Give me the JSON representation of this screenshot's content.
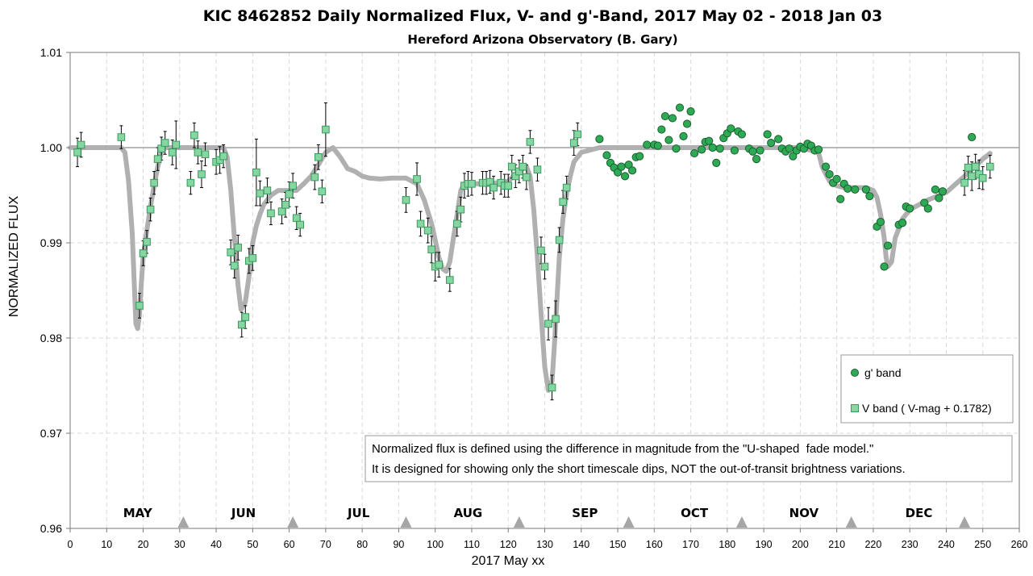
{
  "chart_data": {
    "type": "scatter",
    "title": "KIC 8462852 Daily Normalized Flux, V- and g'-Band, 2017 May 02 - 2018 Jan 03",
    "subtitle": "Hereford Arizona Observatory (B. Gary)",
    "xlabel": "2017 May xx",
    "ylabel": "NORMALIZED FLUX",
    "xlim": [
      0,
      260
    ],
    "ylim": [
      0.96,
      1.01
    ],
    "x_ticks": [
      0,
      10,
      20,
      30,
      40,
      50,
      60,
      70,
      80,
      90,
      100,
      110,
      120,
      130,
      140,
      150,
      160,
      170,
      180,
      190,
      200,
      210,
      220,
      230,
      240,
      250,
      260
    ],
    "y_ticks": [
      {
        "value": 0.96,
        "label": "0.96"
      },
      {
        "value": 0.97,
        "label": "0.97"
      },
      {
        "value": 0.98,
        "label": "0.98"
      },
      {
        "value": 0.99,
        "label": "0.99"
      },
      {
        "value": 1.0,
        "label": "1.00"
      },
      {
        "value": 1.01,
        "label": "1.01"
      }
    ],
    "grid": true,
    "legend_position": "bottom-right",
    "reference_line": 1.0,
    "month_labels": [
      {
        "x": 18.5,
        "label": "MAY"
      },
      {
        "x": 47.5,
        "label": "JUN"
      },
      {
        "x": 79,
        "label": "JUL"
      },
      {
        "x": 109,
        "label": "AUG"
      },
      {
        "x": 141,
        "label": "SEP"
      },
      {
        "x": 171,
        "label": "OCT"
      },
      {
        "x": 201,
        "label": "NOV"
      },
      {
        "x": 232.5,
        "label": "DEC"
      }
    ],
    "month_markers": [
      31,
      61,
      92,
      123,
      153,
      184,
      214,
      245
    ],
    "annotation": [
      "Normalized flux is defined using the difference in magnitude from the \"U-shaped  fade model.\"",
      "It is designed for showing only the short timescale dips, NOT the out-of-transit brightness variations."
    ],
    "model": {
      "color": "#b0b0b0",
      "x": [
        0,
        14,
        15,
        16,
        17,
        18,
        18.5,
        19,
        19.5,
        20,
        21,
        22,
        23,
        24,
        25,
        26,
        27,
        28,
        30,
        35,
        40,
        42,
        43,
        44,
        45,
        46,
        46.8,
        48,
        49,
        50,
        51,
        52,
        53,
        55,
        57,
        60,
        62,
        64,
        66,
        68,
        70,
        72,
        74,
        76,
        78,
        80,
        82,
        85,
        88,
        92,
        95,
        97,
        99,
        100,
        101,
        102,
        103,
        104,
        105,
        106,
        107,
        108,
        110,
        115,
        120,
        123,
        125,
        126,
        127,
        128,
        129,
        130,
        131,
        132,
        132.7,
        134,
        135,
        136,
        137,
        138,
        140,
        145,
        150,
        155,
        160,
        165,
        170,
        175,
        180,
        185,
        190,
        195,
        200,
        205,
        206,
        207,
        208,
        210,
        212,
        215,
        218,
        220,
        221,
        222,
        223,
        223.5,
        224,
        225,
        226,
        228,
        230,
        235,
        240,
        245,
        250,
        252
      ],
      "y": [
        1.0,
        1.0,
        0.9995,
        0.9965,
        0.991,
        0.9815,
        0.981,
        0.9825,
        0.9858,
        0.9885,
        0.9913,
        0.9938,
        0.996,
        0.998,
        0.9995,
        1.0,
        1.0,
        1.0,
        1.0,
        1.0,
        1.0,
        1.0,
        0.999,
        0.9955,
        0.9905,
        0.9855,
        0.983,
        0.9838,
        0.9865,
        0.99,
        0.9918,
        0.993,
        0.994,
        0.995,
        0.9955,
        0.9955,
        0.9955,
        0.9962,
        0.997,
        0.9982,
        0.9995,
        1.0,
        0.999,
        0.9978,
        0.9975,
        0.997,
        0.9968,
        0.9967,
        0.9968,
        0.9968,
        0.9962,
        0.9945,
        0.992,
        0.9903,
        0.9885,
        0.9873,
        0.987,
        0.988,
        0.9905,
        0.993,
        0.9955,
        0.9962,
        0.9962,
        0.9962,
        0.9965,
        0.9975,
        0.998,
        0.997,
        0.9935,
        0.9885,
        0.9825,
        0.977,
        0.9745,
        0.9755,
        0.9795,
        0.9885,
        0.9925,
        0.9952,
        0.997,
        0.9985,
        0.9995,
        1.0,
        1.0,
        1.0,
        1.0,
        1.0,
        1.0,
        1.0,
        1.0,
        1.0,
        1.0,
        1.0,
        1.0,
        0.9995,
        0.998,
        0.9972,
        0.9965,
        0.996,
        0.9958,
        0.9958,
        0.9958,
        0.9955,
        0.9948,
        0.993,
        0.9905,
        0.9885,
        0.9875,
        0.988,
        0.9905,
        0.9925,
        0.9935,
        0.9945,
        0.9953,
        0.997,
        0.9988,
        0.9994
      ]
    },
    "series": [
      {
        "name": "g' band",
        "marker": "circle",
        "color": "#2eaa55",
        "errcolor": "#1f8a40",
        "points": [
          [
            145,
            1.0009,
            0.0003
          ],
          [
            147,
            0.9992,
            0.0003
          ],
          [
            148,
            0.9984,
            0.0003
          ],
          [
            149,
            0.9979,
            0.0003
          ],
          [
            150,
            0.9974,
            0.0003
          ],
          [
            151,
            0.998,
            0.0003
          ],
          [
            152,
            0.997,
            0.0003
          ],
          [
            153,
            0.9982,
            0.0003
          ],
          [
            154,
            0.9976,
            0.0003
          ],
          [
            155,
            0.999,
            0.0003
          ],
          [
            156,
            0.9991,
            0.0003
          ],
          [
            158,
            1.0003,
            0.0003
          ],
          [
            160,
            1.0003,
            0.0003
          ],
          [
            161,
            1.0002,
            0.0003
          ],
          [
            162,
            1.0019,
            0.0003
          ],
          [
            163,
            1.0033,
            0.0003
          ],
          [
            164,
            1.0008,
            0.0003
          ],
          [
            165,
            1.0031,
            0.0003
          ],
          [
            166,
            0.9999,
            0.0003
          ],
          [
            167,
            1.0042,
            0.0003
          ],
          [
            168,
            1.0012,
            0.0003
          ],
          [
            169,
            1.0025,
            0.0003
          ],
          [
            170,
            1.0038,
            0.0003
          ],
          [
            171,
            0.9994,
            0.0003
          ],
          [
            173,
            0.9998,
            0.0003
          ],
          [
            174,
            1.0006,
            0.0003
          ],
          [
            175,
            1.0007,
            0.0003
          ],
          [
            176,
            1.0,
            0.0003
          ],
          [
            177,
            0.9984,
            0.0003
          ],
          [
            178,
            0.9999,
            0.0003
          ],
          [
            179,
            1.001,
            0.0003
          ],
          [
            180,
            1.0015,
            0.0003
          ],
          [
            181,
            1.002,
            0.0003
          ],
          [
            182,
            0.9997,
            0.0003
          ],
          [
            183,
            1.0017,
            0.0003
          ],
          [
            184,
            1.0014,
            0.0003
          ],
          [
            186,
            0.9999,
            0.0003
          ],
          [
            187,
            0.9996,
            0.0003
          ],
          [
            188,
            0.9988,
            0.0003
          ],
          [
            189,
            0.9997,
            0.0003
          ],
          [
            191,
            1.0014,
            0.0003
          ],
          [
            192,
            1.0005,
            0.0003
          ],
          [
            194,
            1.0009,
            0.0003
          ],
          [
            195,
            0.9999,
            0.0003
          ],
          [
            196,
            0.9996,
            0.0003
          ],
          [
            197,
            0.9999,
            0.0003
          ],
          [
            198,
            0.9991,
            0.0003
          ],
          [
            199,
            0.9997,
            0.0003
          ],
          [
            200,
            1.0001,
            0.0003
          ],
          [
            201,
            0.9999,
            0.0003
          ],
          [
            202,
            1.0004,
            0.0003
          ],
          [
            203,
            1.0002,
            0.0003
          ],
          [
            204,
            0.9997,
            0.0003
          ],
          [
            205,
            0.9998,
            0.0003
          ],
          [
            207,
            0.998,
            0.0003
          ],
          [
            208,
            0.9972,
            0.0003
          ],
          [
            209,
            0.9963,
            0.0003
          ],
          [
            210,
            0.9967,
            0.0003
          ],
          [
            211,
            0.9946,
            0.0003
          ],
          [
            212,
            0.9962,
            0.0003
          ],
          [
            213,
            0.9957,
            0.0003
          ],
          [
            215,
            0.9956,
            0.0003
          ],
          [
            218,
            0.9956,
            0.0003
          ],
          [
            219,
            0.9949,
            0.0003
          ],
          [
            221,
            0.9917,
            0.0003
          ],
          [
            222,
            0.9922,
            0.0003
          ],
          [
            223,
            0.9875,
            0.0003
          ],
          [
            224,
            0.9897,
            0.0003
          ],
          [
            227,
            0.9919,
            0.0003
          ],
          [
            228,
            0.9921,
            0.0003
          ],
          [
            229,
            0.9938,
            0.0003
          ],
          [
            230,
            0.9936,
            0.0003
          ],
          [
            234,
            0.9942,
            0.0003
          ],
          [
            235,
            0.9936,
            0.0003
          ],
          [
            237,
            0.9956,
            0.0003
          ],
          [
            238,
            0.9947,
            0.0003
          ],
          [
            239,
            0.9954,
            0.0003
          ],
          [
            247,
            1.0011,
            0.0003
          ]
        ]
      },
      {
        "name": "V band ( V-mag + 0.1782)",
        "marker": "square",
        "color": "#85d6a1",
        "errcolor": "#000000",
        "points": [
          [
            2,
            0.9995,
            0.0015
          ],
          [
            3,
            1.0003,
            0.0013
          ],
          [
            14,
            1.0011,
            0.0012
          ],
          [
            19,
            0.9834,
            0.0013
          ],
          [
            20,
            0.9889,
            0.0013
          ],
          [
            21,
            0.9901,
            0.0012
          ],
          [
            22,
            0.9935,
            0.0012
          ],
          [
            23,
            0.9963,
            0.0012
          ],
          [
            24,
            0.9988,
            0.0012
          ],
          [
            25,
            0.9999,
            0.0012
          ],
          [
            26,
            1.0005,
            0.0012
          ],
          [
            28,
            0.9995,
            0.0013
          ],
          [
            29,
            1.0003,
            0.0025
          ],
          [
            33,
            0.9963,
            0.0012
          ],
          [
            34,
            1.0013,
            0.0013
          ],
          [
            35,
            0.9995,
            0.0012
          ],
          [
            36,
            0.9972,
            0.0014
          ],
          [
            37,
            0.9993,
            0.0012
          ],
          [
            40,
            0.9985,
            0.0013
          ],
          [
            41,
            0.9987,
            0.0014
          ],
          [
            42,
            0.9991,
            0.0012
          ],
          [
            44,
            0.989,
            0.0013
          ],
          [
            45,
            0.9876,
            0.0013
          ],
          [
            46,
            0.9895,
            0.0013
          ],
          [
            47,
            0.9814,
            0.0013
          ],
          [
            48,
            0.9822,
            0.0012
          ],
          [
            49,
            0.9881,
            0.0013
          ],
          [
            50,
            0.9884,
            0.0013
          ],
          [
            51,
            0.9974,
            0.0035
          ],
          [
            52,
            0.9952,
            0.0013
          ],
          [
            54,
            0.9955,
            0.0013
          ],
          [
            55,
            0.9931,
            0.0012
          ],
          [
            58,
            0.9933,
            0.0013
          ],
          [
            59,
            0.994,
            0.0013
          ],
          [
            60,
            0.9951,
            0.0013
          ],
          [
            61,
            0.996,
            0.0013
          ],
          [
            62,
            0.9926,
            0.0012
          ],
          [
            63,
            0.9919,
            0.0012
          ],
          [
            67,
            0.9969,
            0.0013
          ],
          [
            68,
            0.999,
            0.0013
          ],
          [
            69,
            0.9954,
            0.0012
          ],
          [
            70,
            1.0019,
            0.0028
          ],
          [
            92,
            0.9945,
            0.0013
          ],
          [
            95,
            0.9967,
            0.0017
          ],
          [
            96,
            0.992,
            0.0013
          ],
          [
            98,
            0.9913,
            0.0013
          ],
          [
            99,
            0.9893,
            0.0014
          ],
          [
            100,
            0.9875,
            0.0015
          ],
          [
            101,
            0.9877,
            0.0013
          ],
          [
            104,
            0.9861,
            0.0012
          ],
          [
            106,
            0.992,
            0.0013
          ],
          [
            107,
            0.9935,
            0.0013
          ],
          [
            108,
            0.996,
            0.0013
          ],
          [
            109,
            0.9962,
            0.0013
          ],
          [
            110,
            0.9962,
            0.0012
          ],
          [
            113,
            0.9963,
            0.0012
          ],
          [
            114,
            0.9963,
            0.0012
          ],
          [
            115,
            0.9964,
            0.0012
          ],
          [
            116,
            0.9958,
            0.0012
          ],
          [
            118,
            0.9963,
            0.0012
          ],
          [
            119,
            0.996,
            0.0012
          ],
          [
            120,
            0.996,
            0.0012
          ],
          [
            121,
            0.998,
            0.0012
          ],
          [
            122,
            0.997,
            0.0012
          ],
          [
            123,
            0.9975,
            0.0012
          ],
          [
            124,
            0.998,
            0.0012
          ],
          [
            125,
            0.9969,
            0.0013
          ],
          [
            126,
            1.0006,
            0.0012
          ],
          [
            128,
            0.9977,
            0.0012
          ],
          [
            129,
            0.9892,
            0.0014
          ],
          [
            130,
            0.9875,
            0.0013
          ],
          [
            131,
            0.9815,
            0.0017
          ],
          [
            132,
            0.9748,
            0.0013
          ],
          [
            133,
            0.982,
            0.0019
          ],
          [
            134,
            0.9903,
            0.0013
          ],
          [
            135,
            0.9943,
            0.0012
          ],
          [
            136,
            0.9958,
            0.0012
          ],
          [
            138,
            1.0005,
            0.0013
          ],
          [
            139,
            1.0014,
            0.0012
          ],
          [
            245,
            0.9963,
            0.0013
          ],
          [
            246,
            0.9979,
            0.0012
          ],
          [
            247,
            0.997,
            0.0015
          ],
          [
            248,
            0.998,
            0.0013
          ],
          [
            249,
            0.9972,
            0.0015
          ],
          [
            250,
            0.9968,
            0.0012
          ],
          [
            252,
            0.998,
            0.0012
          ]
        ]
      }
    ]
  }
}
